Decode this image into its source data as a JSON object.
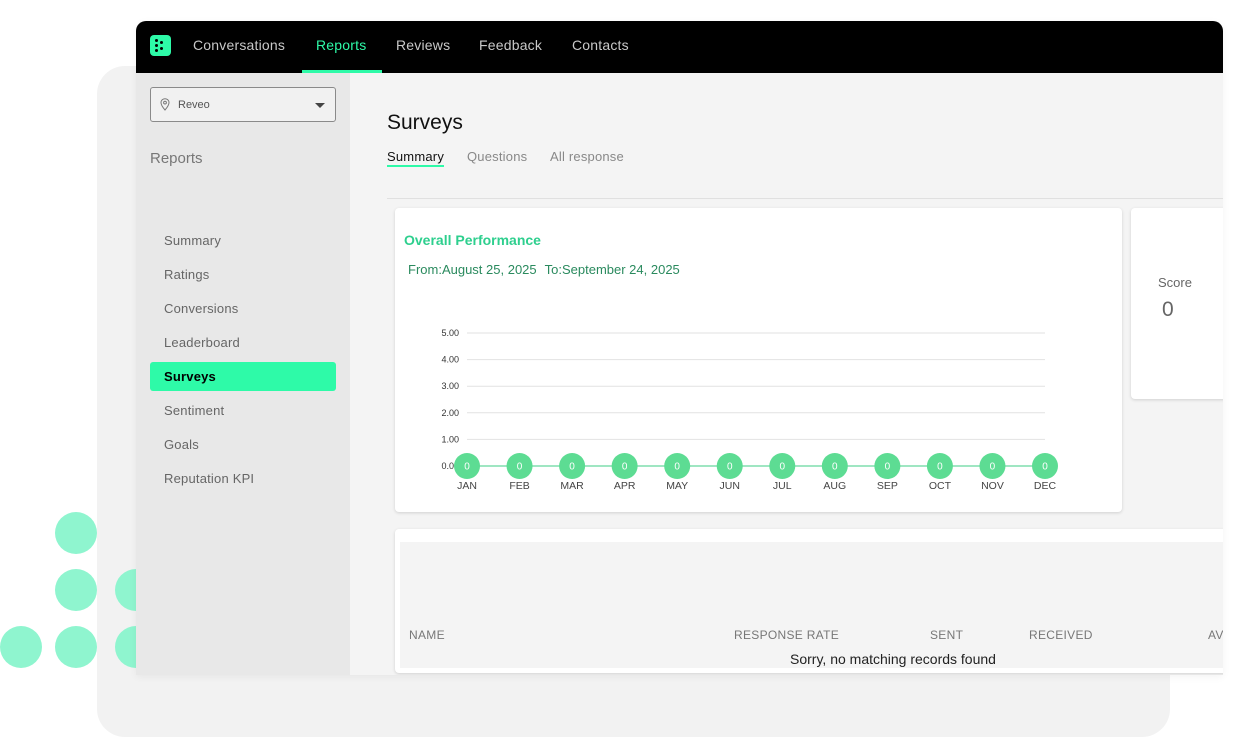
{
  "nav": {
    "items": [
      {
        "label": "Conversations",
        "active": false
      },
      {
        "label": "Reports",
        "active": true
      },
      {
        "label": "Reviews",
        "active": false
      },
      {
        "label": "Feedback",
        "active": false
      },
      {
        "label": "Contacts",
        "active": false
      }
    ]
  },
  "sidebar": {
    "location_select": {
      "value": "Reveo",
      "icon": "location-pin-icon"
    },
    "section_title": "Reports",
    "items": [
      {
        "label": "Summary",
        "active": false
      },
      {
        "label": "Ratings",
        "active": false
      },
      {
        "label": "Conversions",
        "active": false
      },
      {
        "label": "Leaderboard",
        "active": false
      },
      {
        "label": "Surveys",
        "active": true
      },
      {
        "label": "Sentiment",
        "active": false
      },
      {
        "label": "Goals",
        "active": false
      },
      {
        "label": "Reputation KPI",
        "active": false
      }
    ]
  },
  "main": {
    "title": "Surveys",
    "tabs": [
      {
        "label": "Summary",
        "active": true
      },
      {
        "label": "Questions",
        "active": false
      },
      {
        "label": "All response",
        "active": false
      }
    ]
  },
  "performance": {
    "title": "Overall Performance",
    "from": "From:August 25, 2025",
    "to": "To:September 24, 2025"
  },
  "score": {
    "label": "Score",
    "value": "0"
  },
  "table": {
    "columns": [
      "NAME",
      "RESPONSE RATE",
      "SENT",
      "RECEIVED",
      "AV"
    ],
    "empty_message": "Sorry, no matching records found"
  },
  "colors": {
    "accent": "#2efaa8",
    "point": "#5ddc93",
    "title_green": "#2ecf8e"
  },
  "chart_data": {
    "type": "line",
    "categories": [
      "JAN",
      "FEB",
      "MAR",
      "APR",
      "MAY",
      "JUN",
      "JUL",
      "AUG",
      "SEP",
      "OCT",
      "NOV",
      "DEC"
    ],
    "series": [
      {
        "values": [
          0,
          0,
          0,
          0,
          0,
          0,
          0,
          0,
          0,
          0,
          0,
          0
        ]
      }
    ],
    "data_labels": [
      "0",
      "0",
      "0",
      "0",
      "0",
      "0",
      "0",
      "0",
      "0",
      "0",
      "0",
      "0"
    ],
    "y_ticks": [
      "0.00",
      "1.00",
      "2.00",
      "3.00",
      "4.00",
      "5.00"
    ],
    "ylim": [
      0,
      5
    ],
    "grid": true
  }
}
